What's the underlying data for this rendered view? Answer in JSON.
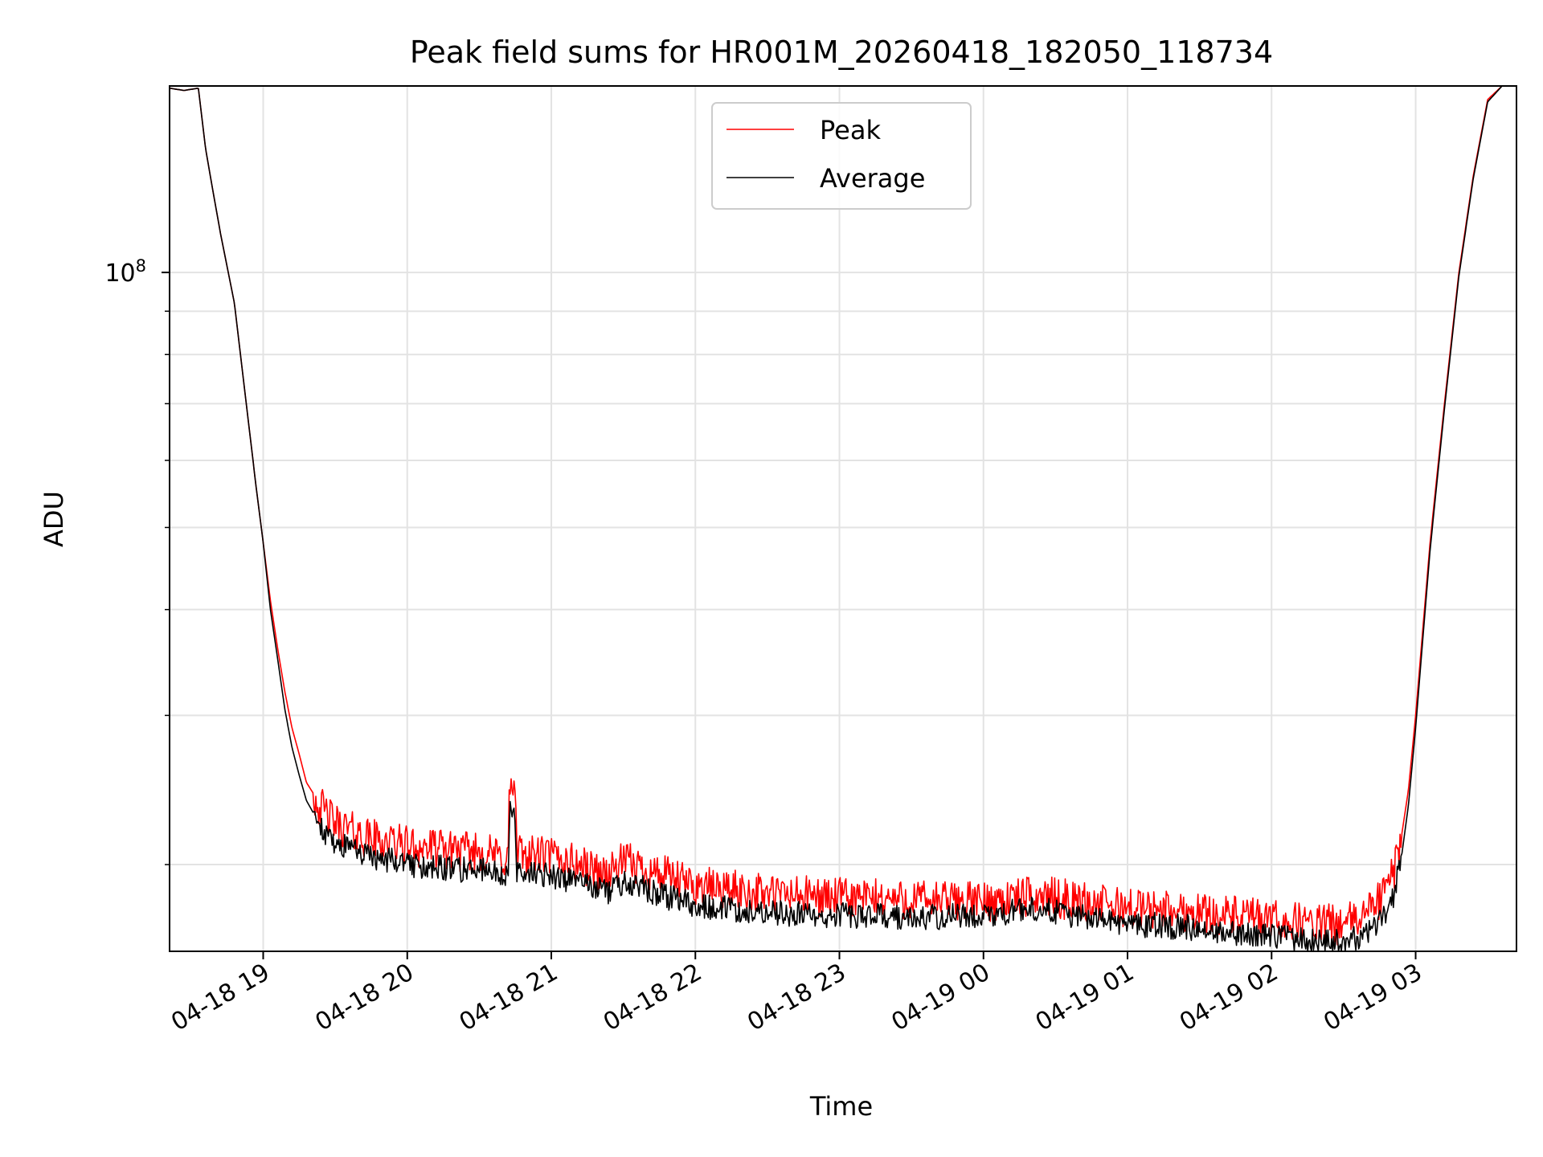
{
  "chart_data": {
    "type": "line",
    "title": "Peak field sums for HR001M_20260418_182050_118734",
    "xlabel": "Time",
    "ylabel": "ADU",
    "yscale": "log",
    "grid": true,
    "legend_position": "top-center",
    "x_unit": "hours since 2026-04-18 18:00",
    "xlim": [
      0.35,
      9.7
    ],
    "ylim": [
      15800000,
      166000000
    ],
    "y_major_tick_base": "10",
    "y_major_tick_exp": "8",
    "x_tick_labels": [
      "04-18 19",
      "04-18 20",
      "04-18 21",
      "04-18 22",
      "04-18 23",
      "04-19 00",
      "04-19 01",
      "04-19 02",
      "04-19 03"
    ],
    "x_ticks": [
      1,
      2,
      3,
      4,
      5,
      6,
      7,
      8,
      9
    ],
    "series": [
      {
        "name": "Peak",
        "color": "#ff0000",
        "x": [
          0.35,
          0.45,
          0.55,
          0.6,
          0.65,
          0.7,
          0.8,
          0.9,
          0.95,
          1.0,
          1.05,
          1.1,
          1.15,
          1.2,
          1.25,
          1.3,
          1.4,
          1.5,
          1.7,
          2.0,
          2.3,
          2.33,
          2.36,
          2.5,
          2.7,
          2.71,
          2.75,
          2.76,
          3.0,
          3.4,
          3.5,
          3.8,
          3.9,
          4.0,
          4.5,
          5.0,
          5.5,
          6.0,
          6.4,
          6.6,
          7.0,
          7.5,
          8.0,
          8.3,
          8.5,
          8.6,
          8.7,
          8.8,
          8.85,
          8.9,
          8.95,
          9.0,
          9.05,
          9.1,
          9.2,
          9.3,
          9.4,
          9.5,
          9.6,
          9.7
        ],
        "y": [
          165000000,
          164000000,
          165000000,
          140000000,
          125000000,
          112000000,
          92000000,
          66000000,
          56000000,
          48000000,
          41000000,
          36000000,
          32000000,
          29000000,
          27000000,
          25000000,
          23500000,
          22500000,
          21700000,
          21200000,
          20900000,
          21400000,
          20800000,
          20900000,
          20400000,
          25000000,
          24500000,
          20700000,
          20600000,
          19600000,
          20300000,
          19500000,
          19200000,
          19000000,
          18600000,
          18400000,
          18300000,
          18200000,
          18500000,
          18300000,
          17900000,
          17700000,
          17300000,
          17150000,
          17100000,
          17400000,
          17900000,
          18800000,
          19800000,
          21500000,
          24500000,
          30000000,
          38000000,
          48000000,
          70000000,
          100000000,
          130000000,
          160000000,
          166000000,
          166000000
        ]
      },
      {
        "name": "Average",
        "color": "#000000",
        "x": [
          0.35,
          0.45,
          0.55,
          0.6,
          0.65,
          0.7,
          0.8,
          0.9,
          0.95,
          1.0,
          1.05,
          1.1,
          1.15,
          1.2,
          1.25,
          1.3,
          1.4,
          1.5,
          1.7,
          2.0,
          2.3,
          2.33,
          2.36,
          2.5,
          2.7,
          2.71,
          2.75,
          2.76,
          3.0,
          3.4,
          3.5,
          3.8,
          3.9,
          4.0,
          4.5,
          5.0,
          5.5,
          6.0,
          6.4,
          6.6,
          7.0,
          7.5,
          8.0,
          8.3,
          8.5,
          8.6,
          8.7,
          8.8,
          8.85,
          8.9,
          8.95,
          9.0,
          9.05,
          9.1,
          9.2,
          9.3,
          9.4,
          9.5,
          9.6,
          9.7
        ],
        "y": [
          165000000,
          164000000,
          165000000,
          140000000,
          125000000,
          112000000,
          92000000,
          66000000,
          56000000,
          48000000,
          40000000,
          35000000,
          30500000,
          27500000,
          25500000,
          23800000,
          22200000,
          21300000,
          20600000,
          20100000,
          19900000,
          20300000,
          19800000,
          19800000,
          19400000,
          23500000,
          23000000,
          19700000,
          19500000,
          18600000,
          19200000,
          18400000,
          18200000,
          18000000,
          17600000,
          17500000,
          17400000,
          17500000,
          17800000,
          17500000,
          17100000,
          16900000,
          16500000,
          16300000,
          16250000,
          16500000,
          16900000,
          17700000,
          18600000,
          20300000,
          23500000,
          29000000,
          37000000,
          47000000,
          69000000,
          99000000,
          129000000,
          159000000,
          166000000,
          166000000
        ]
      }
    ]
  }
}
